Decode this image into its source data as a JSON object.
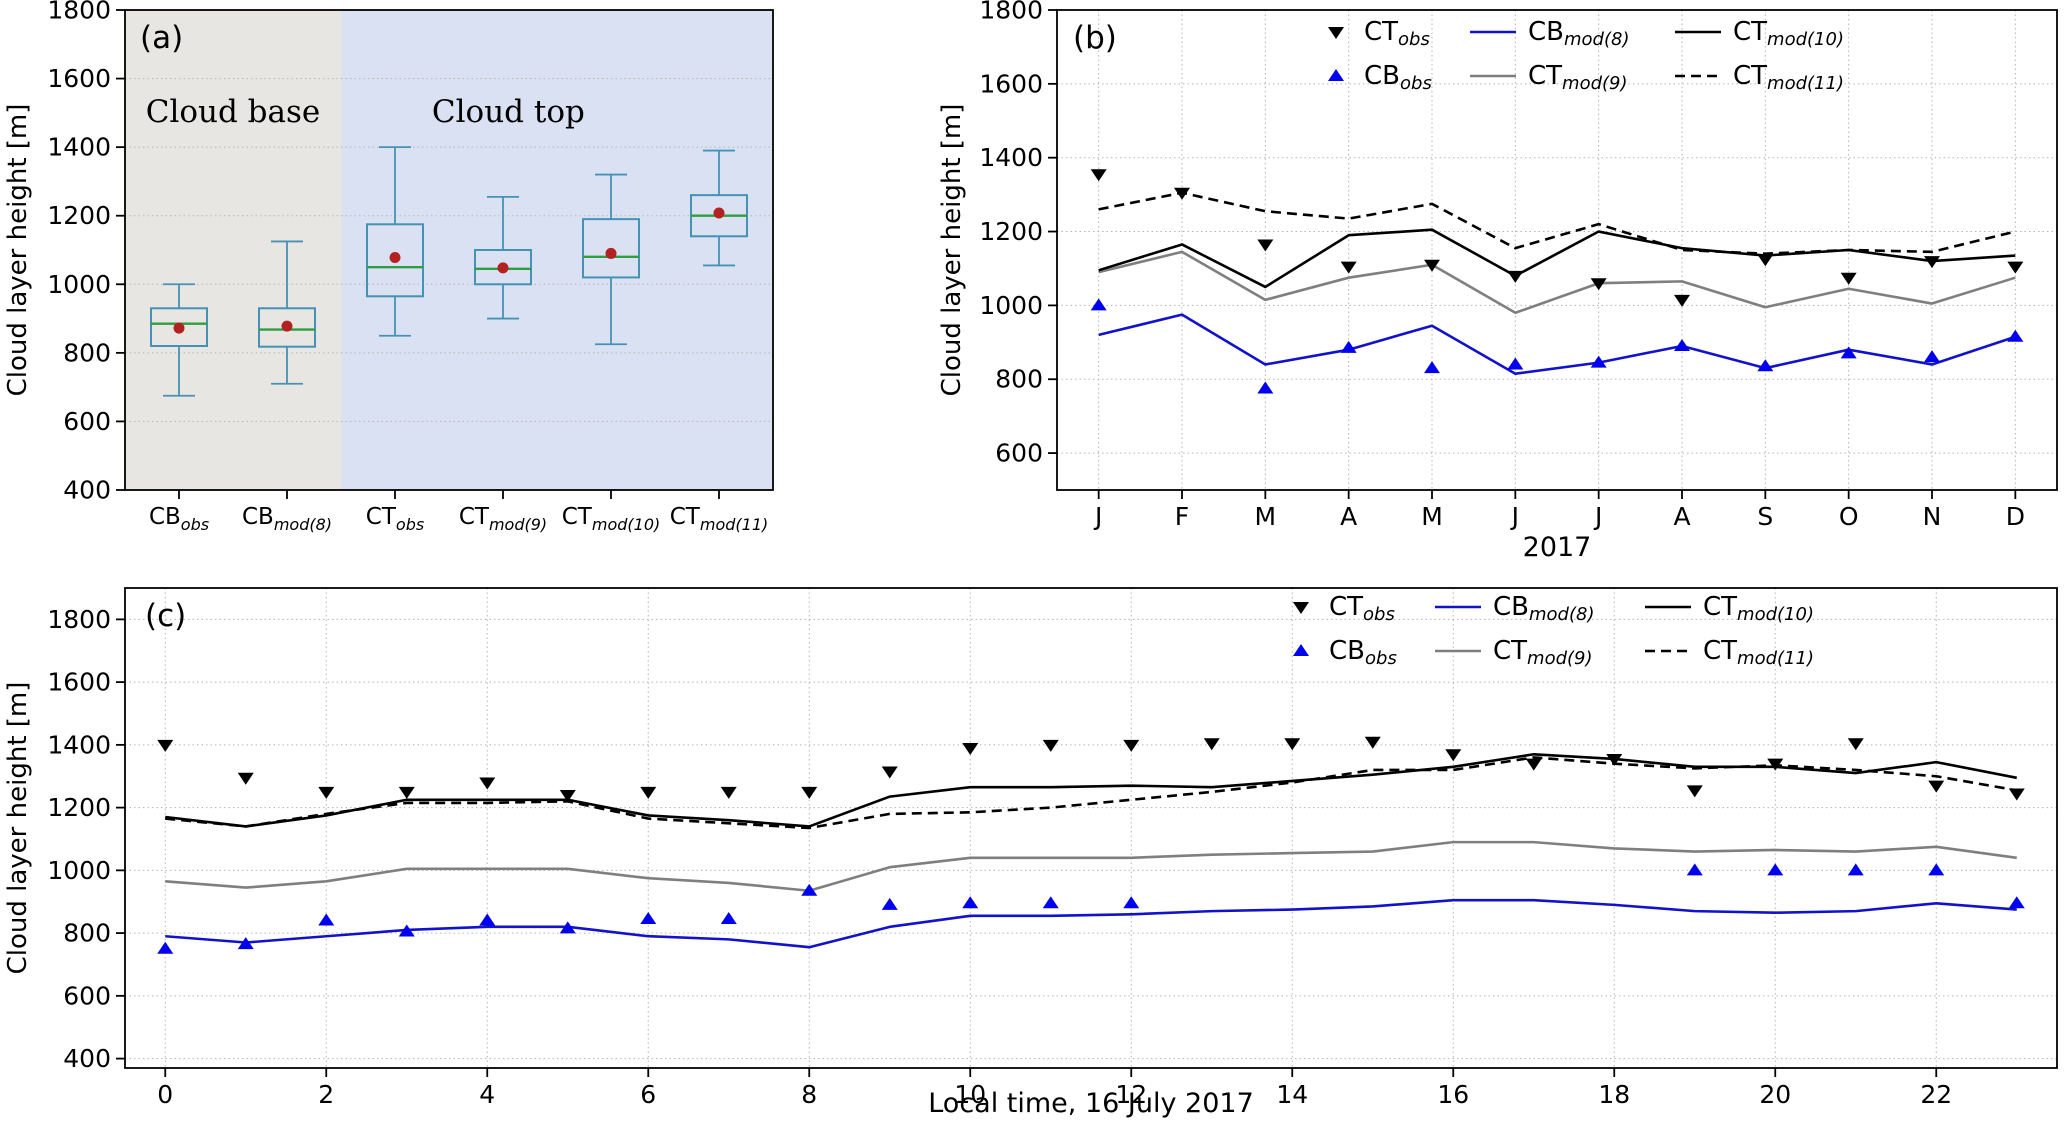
{
  "colors": {
    "background": "#ffffff",
    "ct_obs_marker": "#000000",
    "cb_obs_marker": "#0000ee",
    "cb_mod_line": "#1212cc",
    "ct_mod9_line": "#7f7f7f",
    "ct_mod10_line": "#000000",
    "ct_mod11_line": "#000000",
    "box_edge": "#4692b4",
    "box_median": "#2e9e3e",
    "box_mean": "#b22222",
    "region_base_bg": "#e8e6e2",
    "region_top_bg": "#d9e1f3",
    "grid": "#b5b5b5"
  },
  "legend": {
    "entries": [
      {
        "base": "CT",
        "sub": "obs",
        "marker": "triangle-down",
        "color": "#000000"
      },
      {
        "base": "CB",
        "sub": "obs",
        "marker": "triangle-up",
        "color": "#0000ee"
      },
      {
        "base": "CB",
        "sub": "mod(8)",
        "marker": "line",
        "color": "#1212cc"
      },
      {
        "base": "CT",
        "sub": "mod(9)",
        "marker": "line",
        "color": "#7f7f7f"
      },
      {
        "base": "CT",
        "sub": "mod(10)",
        "marker": "line",
        "color": "#000000"
      },
      {
        "base": "CT",
        "sub": "mod(11)",
        "marker": "line-dashed",
        "color": "#000000"
      }
    ]
  },
  "chart_data": [
    {
      "id": "a",
      "type": "box",
      "panel_label": "(a)",
      "ylabel": "Cloud layer height [m]",
      "ylim": [
        400,
        1800
      ],
      "yticks": [
        400,
        600,
        800,
        1000,
        1200,
        1400,
        1600,
        1800
      ],
      "xlim": [
        0,
        6
      ],
      "regions": [
        {
          "name": "cloud-base",
          "x0": 0,
          "x1": 2,
          "label": "Cloud base",
          "label_x": 1.0,
          "color": "#e8e6e2"
        },
        {
          "name": "cloud-top",
          "x0": 2,
          "x1": 6,
          "label": "Cloud top",
          "label_x": 3.55,
          "color": "#d9e1f3"
        }
      ],
      "categories": [
        {
          "base": "CB",
          "sub": "obs"
        },
        {
          "base": "CB",
          "sub": "mod(8)"
        },
        {
          "base": "CT",
          "sub": "obs"
        },
        {
          "base": "CT",
          "sub": "mod(9)"
        },
        {
          "base": "CT",
          "sub": "mod(10)"
        },
        {
          "base": "CT",
          "sub": "mod(11)"
        }
      ],
      "boxes": [
        {
          "whisker_low": 675,
          "q1": 820,
          "median": 885,
          "q3": 930,
          "whisker_high": 1000,
          "mean": 872
        },
        {
          "whisker_low": 710,
          "q1": 818,
          "median": 868,
          "q3": 930,
          "whisker_high": 1125,
          "mean": 878
        },
        {
          "whisker_low": 850,
          "q1": 965,
          "median": 1050,
          "q3": 1175,
          "whisker_high": 1400,
          "mean": 1078
        },
        {
          "whisker_low": 900,
          "q1": 1000,
          "median": 1045,
          "q3": 1100,
          "whisker_high": 1255,
          "mean": 1048
        },
        {
          "whisker_low": 825,
          "q1": 1020,
          "median": 1080,
          "q3": 1190,
          "whisker_high": 1320,
          "mean": 1090
        },
        {
          "whisker_low": 1055,
          "q1": 1140,
          "median": 1200,
          "q3": 1260,
          "whisker_high": 1390,
          "mean": 1208
        }
      ]
    },
    {
      "id": "b",
      "type": "line",
      "panel_label": "(b)",
      "xlabel": "2017",
      "ylabel": "Cloud layer height [m]",
      "ylim": [
        500,
        1800
      ],
      "yticks": [
        600,
        800,
        1000,
        1200,
        1400,
        1600,
        1800
      ],
      "xlim": [
        -0.5,
        11.5
      ],
      "xticks": [
        0,
        1,
        2,
        3,
        4,
        5,
        6,
        7,
        8,
        9,
        10,
        11
      ],
      "xticklabels": [
        "J",
        "F",
        "M",
        "A",
        "M",
        "J",
        "J",
        "A",
        "S",
        "O",
        "N",
        "D"
      ],
      "legend": true,
      "series": [
        {
          "name": "CB_mod(8)",
          "style": "line",
          "dash": false,
          "color": "#1212cc",
          "values": [
            920,
            975,
            840,
            880,
            945,
            815,
            845,
            890,
            830,
            880,
            840,
            915
          ]
        },
        {
          "name": "CT_mod(9)",
          "style": "line",
          "dash": false,
          "color": "#7f7f7f",
          "values": [
            1090,
            1145,
            1015,
            1075,
            1110,
            980,
            1060,
            1065,
            995,
            1045,
            1005,
            1075
          ]
        },
        {
          "name": "CT_mod(10)",
          "style": "line",
          "dash": false,
          "color": "#000000",
          "values": [
            1095,
            1165,
            1050,
            1190,
            1205,
            1080,
            1200,
            1155,
            1135,
            1150,
            1120,
            1135
          ]
        },
        {
          "name": "CT_mod(11)",
          "style": "line",
          "dash": true,
          "color": "#000000",
          "values": [
            1260,
            1305,
            1255,
            1235,
            1275,
            1155,
            1220,
            1150,
            1140,
            1150,
            1145,
            1200
          ]
        },
        {
          "name": "CT_obs",
          "style": "scatter",
          "marker": "triangle-down",
          "color": "#000000",
          "values": [
            1355,
            1305,
            1165,
            1105,
            1110,
            1080,
            1060,
            1015,
            1125,
            1075,
            1120,
            1105
          ]
        },
        {
          "name": "CB_obs",
          "style": "scatter",
          "marker": "triangle-up",
          "color": "#0000ee",
          "values": [
            1000,
            null,
            775,
            885,
            830,
            840,
            845,
            890,
            835,
            870,
            860,
            915
          ]
        }
      ]
    },
    {
      "id": "c",
      "type": "line",
      "panel_label": "(c)",
      "xlabel": "Local time, 16 July 2017",
      "ylabel": "Cloud layer height [m]",
      "ylim": [
        370,
        1900
      ],
      "yticks": [
        400,
        600,
        800,
        1000,
        1200,
        1400,
        1600,
        1800
      ],
      "xlim": [
        -0.5,
        23.5
      ],
      "xticks": [
        0,
        2,
        4,
        6,
        8,
        10,
        12,
        14,
        16,
        18,
        20,
        22
      ],
      "xticklabels": [
        "0",
        "2",
        "4",
        "6",
        "8",
        "10",
        "12",
        "14",
        "16",
        "18",
        "20",
        "22"
      ],
      "legend": true,
      "series": [
        {
          "name": "CB_mod(8)",
          "style": "line",
          "dash": false,
          "color": "#1212cc",
          "values": [
            790,
            770,
            790,
            810,
            820,
            820,
            790,
            780,
            755,
            820,
            855,
            855,
            860,
            870,
            875,
            885,
            905,
            905,
            890,
            870,
            865,
            870,
            895,
            875
          ]
        },
        {
          "name": "CT_mod(9)",
          "style": "line",
          "dash": false,
          "color": "#7f7f7f",
          "values": [
            965,
            945,
            965,
            1005,
            1005,
            1005,
            975,
            960,
            935,
            1010,
            1040,
            1040,
            1040,
            1050,
            1055,
            1060,
            1090,
            1090,
            1070,
            1060,
            1065,
            1060,
            1075,
            1040
          ]
        },
        {
          "name": "CT_mod(10)",
          "style": "line",
          "dash": false,
          "color": "#000000",
          "values": [
            1170,
            1140,
            1175,
            1225,
            1225,
            1225,
            1175,
            1160,
            1140,
            1235,
            1265,
            1265,
            1270,
            1265,
            1285,
            1305,
            1330,
            1370,
            1355,
            1330,
            1330,
            1310,
            1345,
            1295
          ]
        },
        {
          "name": "CT_mod(11)",
          "style": "line",
          "dash": true,
          "color": "#000000",
          "values": [
            1165,
            1140,
            1180,
            1215,
            1215,
            1220,
            1165,
            1150,
            1135,
            1180,
            1185,
            1200,
            1225,
            1250,
            1280,
            1320,
            1320,
            1360,
            1340,
            1325,
            1335,
            1320,
            1300,
            1255
          ]
        },
        {
          "name": "CT_obs",
          "style": "scatter",
          "marker": "triangle-down",
          "color": "#000000",
          "values": [
            1400,
            1295,
            1250,
            1250,
            1280,
            1240,
            1250,
            1250,
            1250,
            1315,
            1390,
            1400,
            1400,
            1405,
            1405,
            1410,
            1370,
            1340,
            1355,
            1255,
            1340,
            1405,
            1270,
            1245
          ]
        },
        {
          "name": "CB_obs",
          "style": "scatter",
          "marker": "triangle-up",
          "color": "#0000ee",
          "values": [
            750,
            765,
            840,
            805,
            840,
            815,
            845,
            845,
            935,
            890,
            895,
            895,
            895,
            null,
            null,
            null,
            null,
            null,
            null,
            1000,
            1000,
            1000,
            1000,
            895
          ]
        }
      ]
    }
  ]
}
